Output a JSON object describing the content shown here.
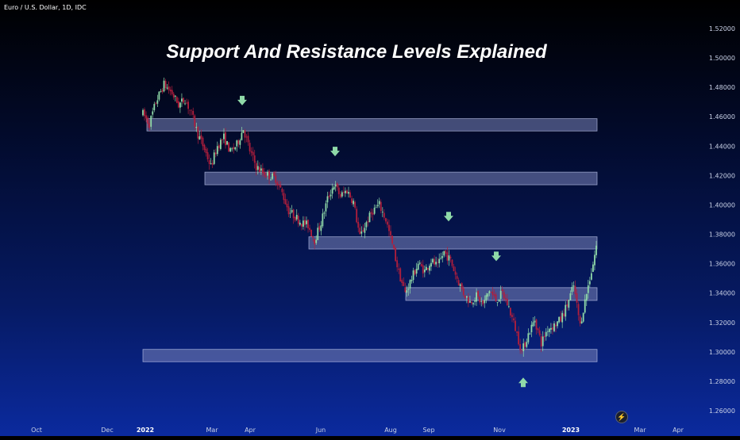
{
  "header": {
    "symbol": "Euro / U.S. Dollar, 1D, IDC"
  },
  "chart_data": {
    "type": "candlestick",
    "title": "Support And Resistance Levels Explained",
    "y_axis": {
      "ticks": [
        "1.52000",
        "1.50000",
        "1.48000",
        "1.46000",
        "1.44000",
        "1.42000",
        "1.40000",
        "1.38000",
        "1.36000",
        "1.34000",
        "1.32000",
        "1.30000",
        "1.28000",
        "1.26000"
      ],
      "ylim": [
        1.255,
        1.525
      ],
      "position": "right"
    },
    "x_axis": {
      "ticks": [
        {
          "label": "Oct",
          "bold": false
        },
        {
          "label": "Dec",
          "bold": false
        },
        {
          "label": "2022",
          "bold": true
        },
        {
          "label": "Mar",
          "bold": false
        },
        {
          "label": "Apr",
          "bold": false
        },
        {
          "label": "Jun",
          "bold": false
        },
        {
          "label": "Aug",
          "bold": false
        },
        {
          "label": "Sep",
          "bold": false
        },
        {
          "label": "Nov",
          "bold": false
        },
        {
          "label": "2023",
          "bold": true
        },
        {
          "label": "Mar",
          "bold": false
        },
        {
          "label": "Apr",
          "bold": false
        }
      ]
    },
    "price_path": [
      [
        0,
        1.462
      ],
      [
        4,
        1.455
      ],
      [
        8,
        1.47
      ],
      [
        13,
        1.482
      ],
      [
        18,
        1.476
      ],
      [
        22,
        1.468
      ],
      [
        26,
        1.472
      ],
      [
        30,
        1.462
      ],
      [
        34,
        1.448
      ],
      [
        38,
        1.438
      ],
      [
        42,
        1.426
      ],
      [
        46,
        1.44
      ],
      [
        50,
        1.446
      ],
      [
        54,
        1.436
      ],
      [
        58,
        1.441
      ],
      [
        62,
        1.452
      ],
      [
        66,
        1.437
      ],
      [
        70,
        1.426
      ],
      [
        74,
        1.422
      ],
      [
        78,
        1.42
      ],
      [
        82,
        1.418
      ],
      [
        86,
        1.408
      ],
      [
        90,
        1.396
      ],
      [
        94,
        1.392
      ],
      [
        98,
        1.388
      ],
      [
        102,
        1.386
      ],
      [
        106,
        1.376
      ],
      [
        110,
        1.388
      ],
      [
        114,
        1.404
      ],
      [
        118,
        1.414
      ],
      [
        122,
        1.406
      ],
      [
        126,
        1.41
      ],
      [
        130,
        1.402
      ],
      [
        134,
        1.378
      ],
      [
        138,
        1.388
      ],
      [
        142,
        1.396
      ],
      [
        146,
        1.4
      ],
      [
        150,
        1.39
      ],
      [
        154,
        1.373
      ],
      [
        158,
        1.354
      ],
      [
        162,
        1.34
      ],
      [
        166,
        1.35
      ],
      [
        170,
        1.36
      ],
      [
        174,
        1.355
      ],
      [
        178,
        1.362
      ],
      [
        182,
        1.358
      ],
      [
        186,
        1.368
      ],
      [
        190,
        1.362
      ],
      [
        194,
        1.35
      ],
      [
        198,
        1.34
      ],
      [
        202,
        1.334
      ],
      [
        206,
        1.338
      ],
      [
        210,
        1.332
      ],
      [
        214,
        1.342
      ],
      [
        218,
        1.335
      ],
      [
        222,
        1.34
      ],
      [
        226,
        1.33
      ],
      [
        230,
        1.316
      ],
      [
        234,
        1.3
      ],
      [
        238,
        1.312
      ],
      [
        242,
        1.322
      ],
      [
        246,
        1.306
      ],
      [
        250,
        1.316
      ],
      [
        254,
        1.318
      ],
      [
        258,
        1.322
      ],
      [
        262,
        1.332
      ],
      [
        266,
        1.345
      ],
      [
        270,
        1.318
      ],
      [
        274,
        1.34
      ],
      [
        278,
        1.36
      ],
      [
        280,
        1.372
      ]
    ],
    "zones": [
      {
        "top": 1.4587,
        "bottom": 1.4503
      },
      {
        "top": 1.4223,
        "bottom": 1.4137
      },
      {
        "top": 1.3783,
        "bottom": 1.37
      },
      {
        "top": 1.3437,
        "bottom": 1.335
      },
      {
        "top": 1.3017,
        "bottom": 1.2933
      }
    ],
    "arrows": [
      {
        "price": 1.471,
        "direction": "down"
      },
      {
        "price": 1.4363,
        "direction": "down"
      },
      {
        "price": 1.392,
        "direction": "down"
      },
      {
        "price": 1.365,
        "direction": "down"
      },
      {
        "price": 1.2793,
        "direction": "up"
      }
    ],
    "colors": {
      "up": "#8fd9a8",
      "down": "#b11e3c",
      "zone": "#7a84ba",
      "marker": "#8fd9a8"
    },
    "grid": false,
    "legend": "none"
  },
  "toolbar": {
    "bolt_icon": "⚡"
  }
}
